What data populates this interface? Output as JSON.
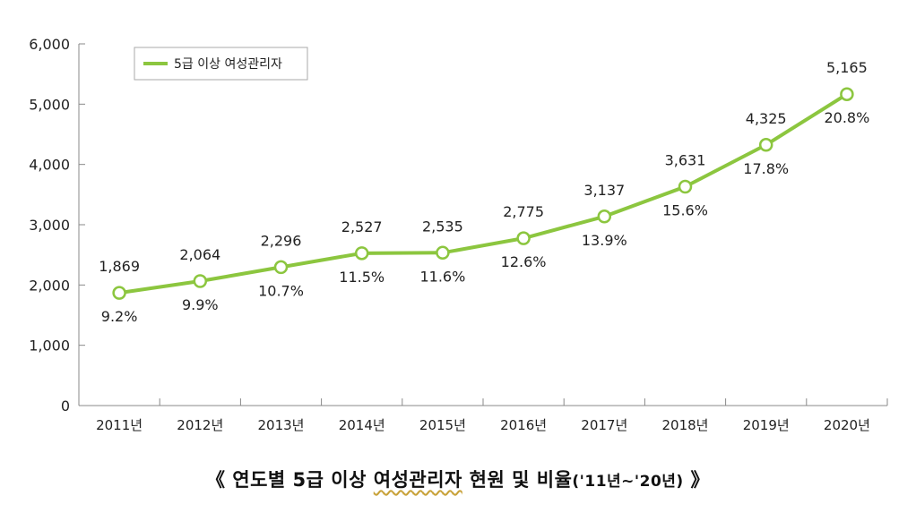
{
  "chart_data": {
    "type": "line",
    "categories": [
      "2011년",
      "2012년",
      "2013년",
      "2014년",
      "2015년",
      "2016년",
      "2017년",
      "2018년",
      "2019년",
      "2020년"
    ],
    "series": [
      {
        "name": "5급 이상 여성관리자",
        "values": [
          1869,
          2064,
          2296,
          2527,
          2535,
          2775,
          3137,
          3631,
          4325,
          5165
        ],
        "value_labels": [
          "1,869",
          "2,064",
          "2,296",
          "2,527",
          "2,535",
          "2,775",
          "3,137",
          "3,631",
          "4,325",
          "5,165"
        ],
        "ratio_labels": [
          "9.2%",
          "9.9%",
          "10.7%",
          "11.5%",
          "11.6%",
          "12.6%",
          "13.9%",
          "15.6%",
          "17.8%",
          "20.8%"
        ]
      }
    ],
    "yticks": [
      "0",
      "1,000",
      "2,000",
      "3,000",
      "4,000",
      "5,000",
      "6,000"
    ],
    "ylim": [
      0,
      6000
    ],
    "legend_placement": "top-left",
    "colors": {
      "line": "#8cc63f",
      "axis": "#888888"
    }
  },
  "caption": {
    "open": "《",
    "prefix": "연도별 5급 이상 ",
    "underlined": "여성관리자",
    "suffix": " 현원 및 비율",
    "sub": "('11년~'20년)",
    "close": "》"
  }
}
